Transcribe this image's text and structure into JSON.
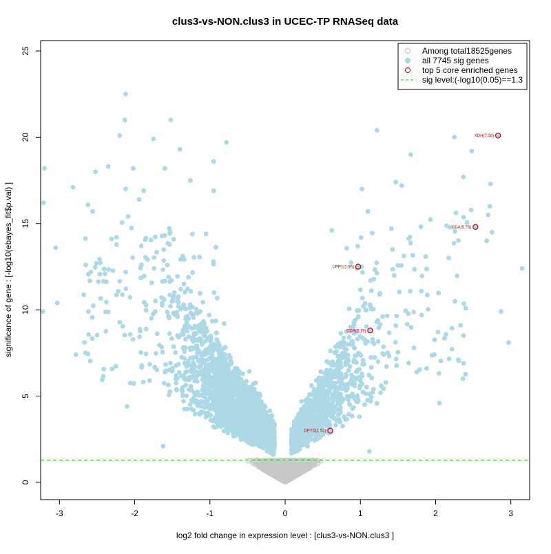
{
  "chart_data": {
    "type": "scatter",
    "title": "clus3-vs-NON.clus3 in UCEC-TP RNASeq data",
    "xlabel": "log2 fold change in expression level : [clus3-vs-NON.clus3 ]",
    "ylabel": "significance of gene : [-log10(ebayes_fit$p.val) ]",
    "xlim": [
      -3.25,
      3.25
    ],
    "ylim": [
      -1.0,
      25.6
    ],
    "x_ticks": [
      -3,
      -2,
      -1,
      0,
      1,
      2,
      3
    ],
    "y_ticks": [
      0,
      5,
      10,
      15,
      20,
      25
    ],
    "threshold": 1.3,
    "legend": {
      "position": "top-right",
      "entries": [
        {
          "label": "Among total18525genes",
          "symbol": "open-circle",
          "color": "#bebebe"
        },
        {
          "label": "all 7745 sig genes",
          "symbol": "filled-circle",
          "color": "#add8e6"
        },
        {
          "label": "top 5 core enriched genes",
          "symbol": "open-circle",
          "color": "#cc0000"
        },
        {
          "label": "sig level:(-log10(0.05)==1.3",
          "symbol": "dashed-line",
          "color": "#00cc00"
        }
      ]
    },
    "colors": {
      "nonsig": "#c8c8c8",
      "sig": "#add8e6",
      "core": "#cc0000",
      "threshold": "#00dd00"
    },
    "core_genes": [
      {
        "label": "XDH(7.08)",
        "x": 2.83,
        "y": 20.1
      },
      {
        "label": "GDA(5.75)",
        "x": 2.53,
        "y": 14.8
      },
      {
        "label": "UPP1(1.96)",
        "x": 0.97,
        "y": 12.5
      },
      {
        "label": "CDA(2.19)",
        "x": 1.13,
        "y": 8.8
      },
      {
        "label": "DPYD(1.52)",
        "x": 0.6,
        "y": 3.0
      }
    ],
    "highlighted_sig_genes": [
      {
        "x": -2.12,
        "y": 22.5
      },
      {
        "x": -2.13,
        "y": 21.0
      },
      {
        "x": -1.52,
        "y": 21.0
      },
      {
        "x": -2.2,
        "y": 20.1
      },
      {
        "x": -1.75,
        "y": 19.9
      },
      {
        "x": -0.78,
        "y": 19.7
      },
      {
        "x": -1.4,
        "y": 19.3
      },
      {
        "x": -0.95,
        "y": 18.6
      },
      {
        "x": -2.35,
        "y": 18.3
      },
      {
        "x": -3.2,
        "y": 18.2
      },
      {
        "x": -2.02,
        "y": 18.2
      },
      {
        "x": -1.6,
        "y": 18.2
      },
      {
        "x": -2.52,
        "y": 18.0
      },
      {
        "x": -1.26,
        "y": 17.5
      },
      {
        "x": -2.82,
        "y": 17.1
      },
      {
        "x": -2.12,
        "y": 17.0
      },
      {
        "x": -0.95,
        "y": 16.9
      },
      {
        "x": -1.88,
        "y": 16.9
      },
      {
        "x": -3.21,
        "y": 16.2
      },
      {
        "x": -1.94,
        "y": 16.4
      },
      {
        "x": -2.56,
        "y": 15.7
      },
      {
        "x": -3.05,
        "y": 13.6
      },
      {
        "x": -2.65,
        "y": 12.6
      },
      {
        "x": -3.03,
        "y": 10.4
      },
      {
        "x": -3.22,
        "y": 9.9
      },
      {
        "x": -2.78,
        "y": 7.4
      },
      {
        "x": -2.1,
        "y": 4.4
      },
      {
        "x": -1.62,
        "y": 2.1
      },
      {
        "x": 1.22,
        "y": 20.4
      },
      {
        "x": 2.25,
        "y": 20.0
      },
      {
        "x": 2.48,
        "y": 19.2
      },
      {
        "x": 1.67,
        "y": 19.0
      },
      {
        "x": 2.37,
        "y": 17.7
      },
      {
        "x": 2.73,
        "y": 17.3
      },
      {
        "x": 1.47,
        "y": 17.4
      },
      {
        "x": 1.55,
        "y": 17.2
      },
      {
        "x": 1.02,
        "y": 17.0
      },
      {
        "x": 2.72,
        "y": 16.0
      },
      {
        "x": 1.1,
        "y": 15.7
      },
      {
        "x": 2.7,
        "y": 15.5
      },
      {
        "x": 0.62,
        "y": 14.6
      },
      {
        "x": 2.75,
        "y": 14.5
      },
      {
        "x": 2.68,
        "y": 14.0
      },
      {
        "x": 3.15,
        "y": 12.4
      },
      {
        "x": 2.4,
        "y": 10.1
      },
      {
        "x": 2.87,
        "y": 9.9
      },
      {
        "x": 2.97,
        "y": 8.1
      },
      {
        "x": 2.37,
        "y": 6.9
      },
      {
        "x": 2.05,
        "y": 4.6
      },
      {
        "x": 1.12,
        "y": 1.8
      }
    ]
  }
}
